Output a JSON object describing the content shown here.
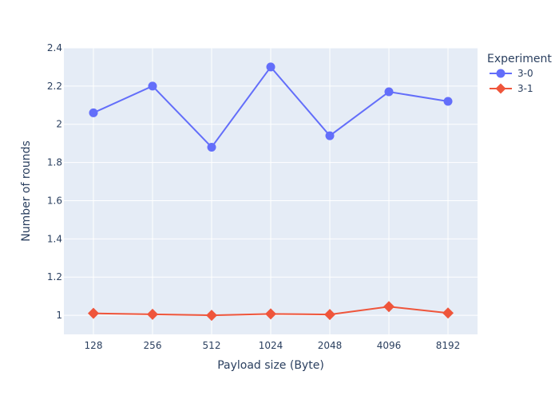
{
  "chart_data": {
    "type": "line",
    "categories": [
      "128",
      "256",
      "512",
      "1024",
      "2048",
      "4096",
      "8192"
    ],
    "series": [
      {
        "name": "3-0",
        "values": [
          2.06,
          2.2,
          1.88,
          2.3,
          1.94,
          2.17,
          2.12
        ],
        "color": "#636efa",
        "marker": "circle"
      },
      {
        "name": "3-1",
        "values": [
          1.01,
          1.005,
          1.0,
          1.007,
          1.004,
          1.045,
          1.012
        ],
        "color": "#ef553b",
        "marker": "diamond"
      }
    ],
    "xlabel": "Payload size (Byte)",
    "ylabel": "Number of rounds",
    "ylim": [
      0.9,
      2.4
    ],
    "yticks": [
      "1",
      "1.2",
      "1.4",
      "1.6",
      "1.8",
      "2",
      "2.2",
      "2.4"
    ],
    "legend_title": "Experiment",
    "legend_position": "top-right",
    "plot_bgcolor": "#e5ecf6",
    "grid": true
  }
}
